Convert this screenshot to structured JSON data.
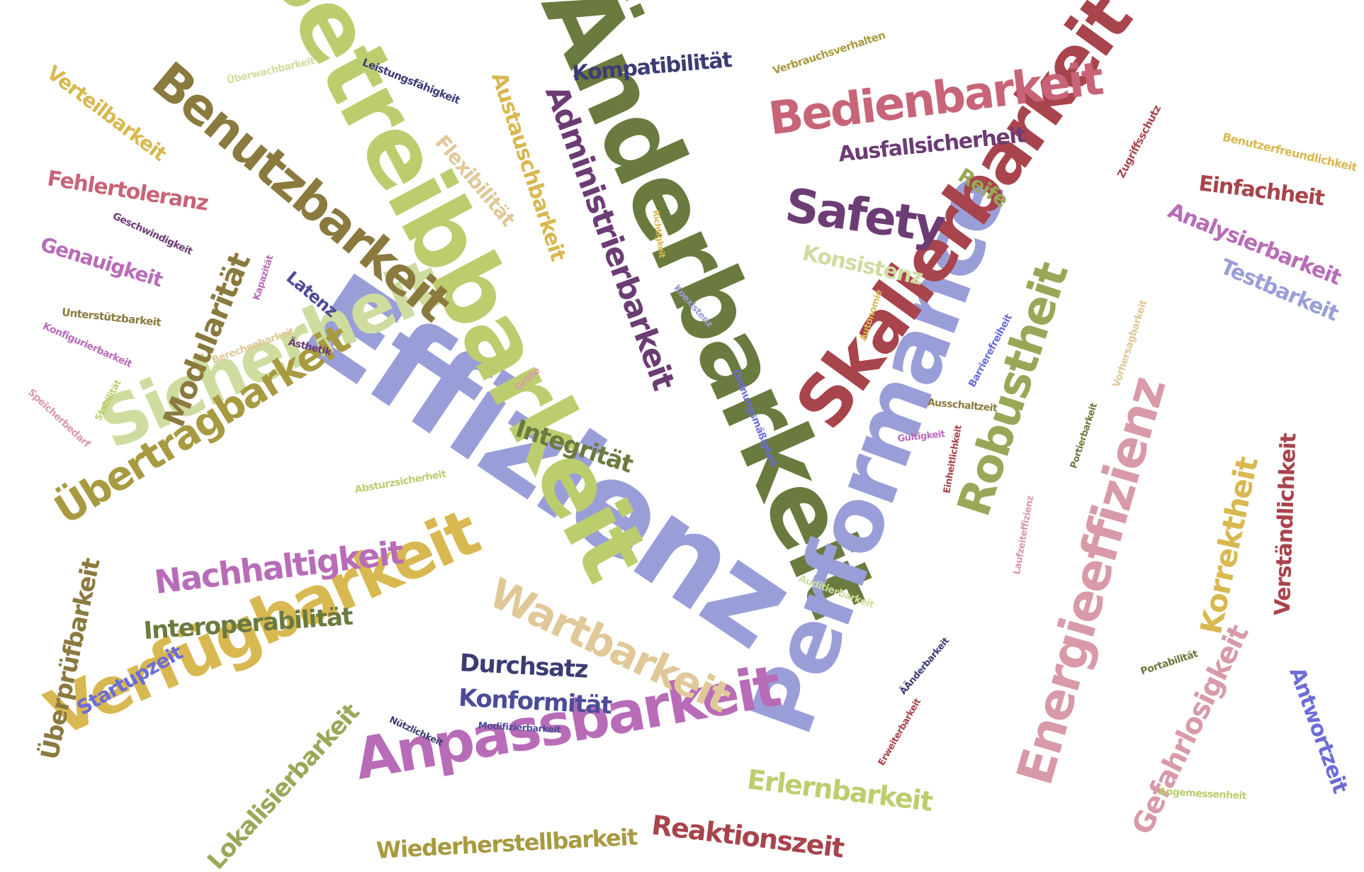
{
  "words": [
    {
      "text": "Effizienz",
      "color": "#9a9ed8"
    },
    {
      "text": "Änderbarkeit",
      "color": "#6b7a3e"
    },
    {
      "text": "Betreibbarkeit",
      "color": "#bccd6e"
    },
    {
      "text": "Performance",
      "color": "#9a9ed8"
    },
    {
      "text": "Skalierbarkeit",
      "color": "#a8444c"
    },
    {
      "text": "Sicherheit",
      "color": "#cfdca0"
    },
    {
      "text": "Verfügbarkeit",
      "color": "#d8b850"
    },
    {
      "text": "Anpassbarkeit",
      "color": "#b86cb8"
    },
    {
      "text": "Benutzbarkeit",
      "color": "#8a7a3e"
    },
    {
      "text": "Energieeffizienz",
      "color": "#d89aa8"
    },
    {
      "text": "Bedienbarkeit",
      "color": "#c86478"
    },
    {
      "text": "Übertragbarkeit",
      "color": "#a89a40"
    },
    {
      "text": "Robustheit",
      "color": "#98a858"
    },
    {
      "text": "Administrierbarkeit",
      "color": "#6c3c74"
    },
    {
      "text": "Wartbarkeit",
      "color": "#e0c898"
    },
    {
      "text": "Safety",
      "color": "#6c3c74"
    },
    {
      "text": "Nachhaltigkeit",
      "color": "#b86cb8"
    },
    {
      "text": "Gefahrlosigkeit",
      "color": "#d89aa8"
    },
    {
      "text": "Korrektheit",
      "color": "#d8b850"
    },
    {
      "text": "Modularität",
      "color": "#8a7a3e"
    },
    {
      "text": "Überprüfbarkeit",
      "color": "#8a7a3e"
    },
    {
      "text": "Interoperabilität",
      "color": "#6b7a3e"
    },
    {
      "text": "Lokalisierbarkeit",
      "color": "#98a858"
    },
    {
      "text": "Wiederherstellbarkeit",
      "color": "#a89a40"
    },
    {
      "text": "Reaktionszeit",
      "color": "#a8444c"
    },
    {
      "text": "Erlernbarkeit",
      "color": "#bccd6e"
    },
    {
      "text": "Durchsatz",
      "color": "#3c3c74"
    },
    {
      "text": "Konformität",
      "color": "#4c4c98"
    },
    {
      "text": "Austauschbarkeit",
      "color": "#d8b850"
    },
    {
      "text": "Kompatibilität",
      "color": "#3c3c74"
    },
    {
      "text": "Verständlichkeit",
      "color": "#a8444c"
    },
    {
      "text": "Antwortzeit",
      "color": "#6c6cd8"
    },
    {
      "text": "Ausfallsicherheit",
      "color": "#6c3c74"
    },
    {
      "text": "Einfachheit",
      "color": "#a8444c"
    },
    {
      "text": "Analysierbarkeit",
      "color": "#b86cb8"
    },
    {
      "text": "Testbarkeit",
      "color": "#9a9ed8"
    },
    {
      "text": "Integrität",
      "color": "#6b7a3e"
    },
    {
      "text": "Konsistenz",
      "color": "#cfdca0"
    },
    {
      "text": "Reife",
      "color": "#98a858"
    },
    {
      "text": "Flexibilität",
      "color": "#e0c898"
    },
    {
      "text": "Fehlertoleranz",
      "color": "#c86478"
    },
    {
      "text": "Genauigkeit",
      "color": "#b86cb8"
    },
    {
      "text": "Verteilbarkeit",
      "color": "#d8b850"
    },
    {
      "text": "Startupzeit",
      "color": "#6c6cd8"
    },
    {
      "text": "Latenz",
      "color": "#4c4c98"
    },
    {
      "text": "Überwachbarkeit",
      "color": "#cfdca0"
    },
    {
      "text": "Leistungsfähigkeit",
      "color": "#3c3c74"
    },
    {
      "text": "Verbrauchsverhalten",
      "color": "#a89a40"
    },
    {
      "text": "Benutzerfreundlichkeit",
      "color": "#d8b850"
    },
    {
      "text": "Zugriffsschutz",
      "color": "#a8444c"
    },
    {
      "text": "Geschwindigkeit",
      "color": "#6c3c74"
    },
    {
      "text": "Unterstützbarkeit",
      "color": "#8a7a3e"
    },
    {
      "text": "Konfigurierbarkeit",
      "color": "#b86cb8"
    },
    {
      "text": "Kapazität",
      "color": "#b86cb8"
    },
    {
      "text": "Berechenbarkeit",
      "color": "#e0c898"
    },
    {
      "text": "Ästhetik",
      "color": "#6c3c74"
    },
    {
      "text": "Speicherbedarf",
      "color": "#d89aa8"
    },
    {
      "text": "Stabilität",
      "color": "#bccd6e"
    },
    {
      "text": "Größe",
      "color": "#d89aa8"
    },
    {
      "text": "Absturzsicherheit",
      "color": "#bccd6e"
    },
    {
      "text": "Richtigkeit",
      "color": "#d8b850"
    },
    {
      "text": "Koexistenz",
      "color": "#9a9ed8"
    },
    {
      "text": "Ordnungsmäßigkeit",
      "color": "#6c6cd8"
    },
    {
      "text": "Autonomie",
      "color": "#d8b850"
    },
    {
      "text": "Barrierefreiheit",
      "color": "#6c6cd8"
    },
    {
      "text": "Vorhersagbarkeit",
      "color": "#e0c898"
    },
    {
      "text": "Ausschaltzeit",
      "color": "#8a7a3e"
    },
    {
      "text": "Gültigkeit",
      "color": "#b86cb8"
    },
    {
      "text": "Einheitlichkeit",
      "color": "#a8444c"
    },
    {
      "text": "Portierbarkeit",
      "color": "#6b7a3e"
    },
    {
      "text": "Laufzeiteffizienz",
      "color": "#d89aa8"
    },
    {
      "text": "Auditierbarkeit",
      "color": "#cfdca0"
    },
    {
      "text": "ÄÄnderbarkeit",
      "color": "#3c3c74"
    },
    {
      "text": "Erweiterbarkeit",
      "color": "#a8444c"
    },
    {
      "text": "Portabilität",
      "color": "#6b7a3e"
    },
    {
      "text": "Angemessenheit",
      "color": "#bccd6e"
    },
    {
      "text": "Nützlichkeit",
      "color": "#3c3c74"
    },
    {
      "text": "Modifizierbarkeit",
      "color": "#4c4c98"
    }
  ]
}
